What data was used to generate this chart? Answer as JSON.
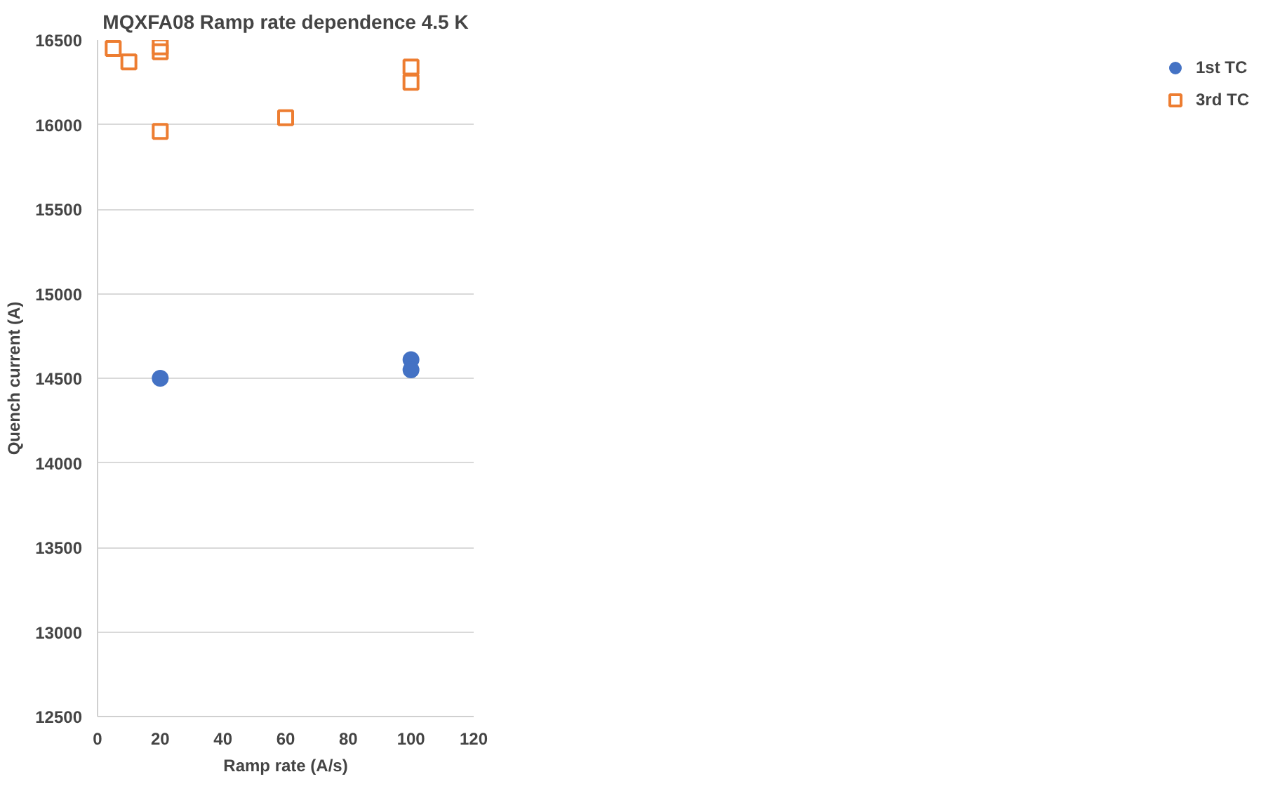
{
  "chart_data": {
    "type": "scatter",
    "title": "MQXFA08 Ramp rate dependence 4.5 K",
    "xlabel": "Ramp rate (A/s)",
    "ylabel": "Quench current (A)",
    "xlim": [
      0,
      120
    ],
    "xticks": [
      0,
      20,
      40,
      60,
      80,
      100,
      120
    ],
    "ylim": [
      12500,
      16500
    ],
    "yticks": [
      12500,
      13000,
      13500,
      14000,
      14500,
      15000,
      15500,
      16000,
      16500
    ],
    "grid": "y",
    "legend": "right",
    "series": [
      {
        "name": "1st TC",
        "color": "#4472c4",
        "marker": "circle",
        "x": [
          20,
          100,
          100
        ],
        "values": [
          14500,
          14610,
          14550
        ]
      },
      {
        "name": "3rd TC",
        "color": "#ed7d31",
        "marker": "square",
        "x": [
          5,
          10,
          20,
          20,
          20,
          60,
          100,
          100
        ],
        "values": [
          16450,
          16370,
          16460,
          16430,
          15960,
          16040,
          16340,
          16250
        ]
      }
    ]
  }
}
